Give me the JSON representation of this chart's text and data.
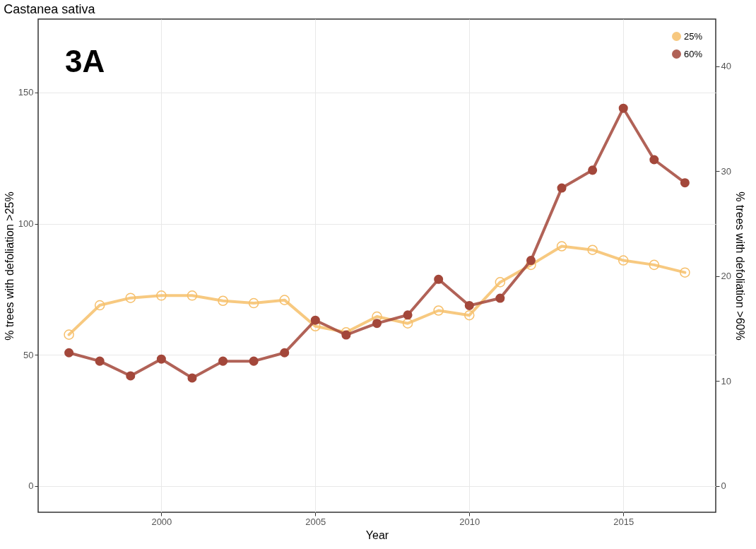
{
  "chart_data": {
    "type": "line",
    "title": "Castanea sativa",
    "xlabel": "Year",
    "ylabel": "% trees with defoliation >25%",
    "y2label": "% trees with defoliation >60%",
    "annotations": [
      "3A"
    ],
    "x": [
      1997,
      1998,
      1999,
      2000,
      2001,
      2002,
      2003,
      2004,
      2005,
      2006,
      2007,
      2008,
      2009,
      2010,
      2011,
      2012,
      2013,
      2014,
      2015,
      2016,
      2017
    ],
    "series": [
      {
        "name": "25%",
        "color": "#f6bf6a",
        "axis": "y",
        "values": [
          57.7,
          68.9,
          71.7,
          72.6,
          72.6,
          70.6,
          69.7,
          70.9,
          60.9,
          58.6,
          64.6,
          62,
          66.9,
          65.1,
          77.7,
          84.3,
          91.4,
          90,
          86,
          84.3,
          81.4
        ]
      },
      {
        "name": "60%",
        "color": "#a3473a",
        "axis": "y2",
        "values": [
          12.7,
          11.9,
          10.5,
          12.1,
          10.3,
          11.9,
          11.9,
          12.7,
          15.8,
          14.4,
          15.5,
          16.3,
          19.7,
          17.2,
          17.9,
          21.5,
          28.4,
          30.1,
          36,
          31.1,
          28.9
        ]
      }
    ],
    "xlim": [
      1996,
      2018
    ],
    "xticks": [
      2000,
      2005,
      2010,
      2015
    ],
    "ylim": [
      -10,
      178
    ],
    "yticks": [
      0,
      50,
      100,
      150
    ],
    "y2lim": [
      -2.5,
      44.5
    ],
    "y2ticks": [
      0,
      10,
      20,
      30,
      40
    ],
    "grid": true,
    "legend": "top right",
    "marker": "circle",
    "line_style": "solid"
  }
}
